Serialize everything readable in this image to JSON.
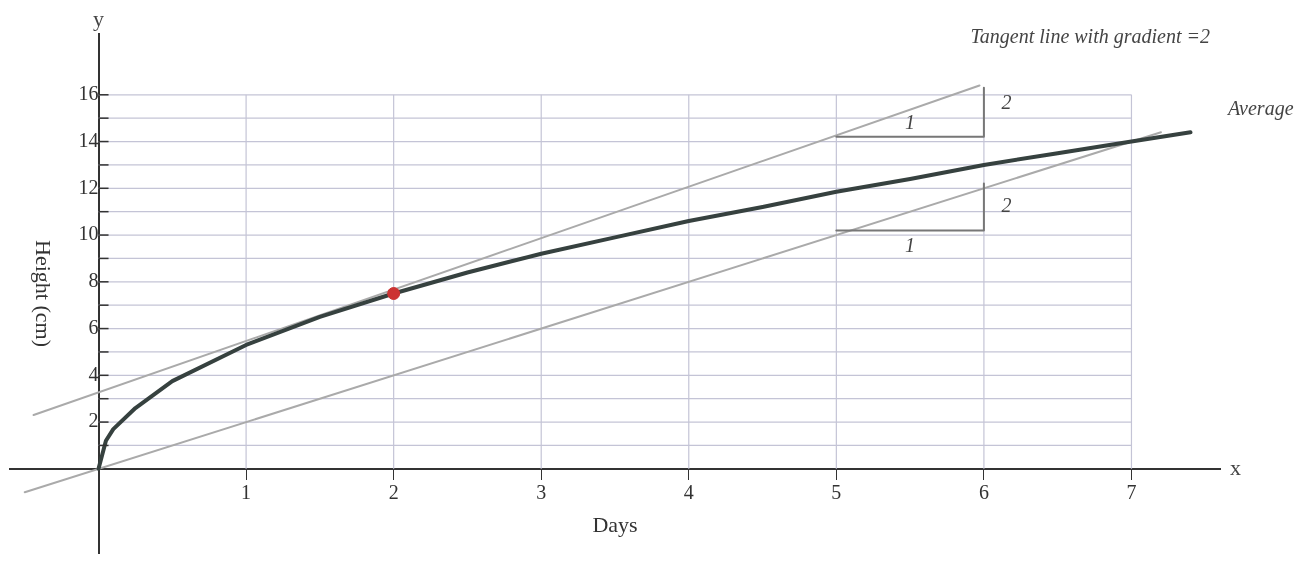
{
  "chart_data": {
    "type": "line",
    "xlabel": "Days",
    "ylabel": "Height (cm)",
    "xlim": [
      -0.6,
      7.6
    ],
    "ylim": [
      -3.6,
      18.6
    ],
    "xticks": [
      1,
      2,
      3,
      4,
      5,
      6,
      7
    ],
    "yticks": [
      {
        "value": 1,
        "label": null
      },
      2,
      {
        "value": 3,
        "label": null
      },
      4,
      {
        "value": 5,
        "label": null
      },
      6,
      {
        "value": 7,
        "label": null
      },
      8,
      {
        "value": 9,
        "label": null
      },
      10,
      {
        "value": 11,
        "label": null
      },
      12,
      {
        "value": 13,
        "label": null
      },
      14,
      {
        "value": 15,
        "label": null
      },
      16
    ],
    "grid": true,
    "series": [
      {
        "color": "#aaaaaa",
        "x": [
          -0.44,
          5.97
        ],
        "values": [
          2.3,
          16.4
        ],
        "marker": "none"
      },
      {
        "color": "#aaaaaa",
        "x": [
          -0.5,
          7.2
        ],
        "values": [
          -1,
          14.4
        ],
        "marker": "none"
      },
      {
        "color": "#777777",
        "x": [
          5,
          6,
          6
        ],
        "values": [
          14.2,
          14.2,
          16.3
        ],
        "marker": "none"
      },
      {
        "color": "#777777",
        "x": [
          5,
          6,
          6
        ],
        "values": [
          10.2,
          10.2,
          12.2
        ],
        "marker": "none"
      },
      {
        "color": "#36413f",
        "x": [
          0,
          0.05,
          0.1,
          0.25,
          0.5,
          1,
          1.5,
          2,
          2.5,
          3,
          3.5,
          4,
          4.5,
          5,
          5.5,
          6,
          6.5,
          7,
          7.4
        ],
        "values": [
          0,
          1.2,
          1.7,
          2.6,
          3.75,
          5.3,
          6.5,
          7.5,
          8.4,
          9.2,
          9.9,
          10.6,
          11.2,
          11.85,
          12.4,
          13,
          13.5,
          14,
          14.4
        ],
        "marker": "none"
      },
      {
        "type": "scatter",
        "color": "#cc3333",
        "x": [
          2
        ],
        "values": [
          7.5
        ],
        "marker": "circle"
      }
    ],
    "annotations": [
      "Tangent line with gradient =2",
      "Average",
      "1",
      "2",
      "2",
      "1",
      "x",
      "y"
    ]
  }
}
